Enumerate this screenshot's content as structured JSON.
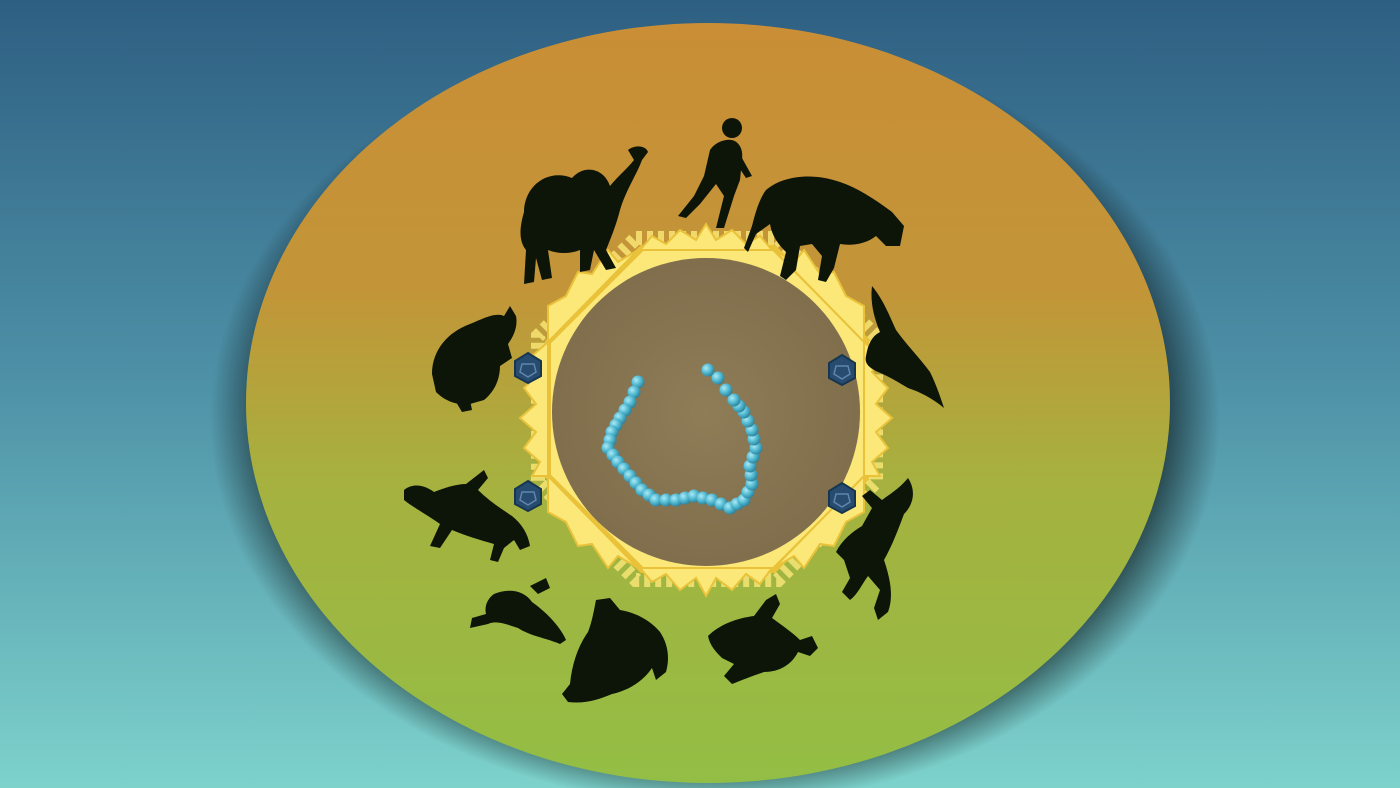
{
  "palette": {
    "background_top": "#2e5f82",
    "background_bottom": "#7dd2cc",
    "disc_top": "#c98e36",
    "disc_bottom": "#93be45",
    "silhouette": "#0d1509",
    "glow": "#fbe878",
    "glow_edge": "#e9c23a",
    "ring": "#6e5c3c",
    "inner_disc": "#8c7a56",
    "bead": "#4fb7cf",
    "virus": "#274c70"
  },
  "scene": {
    "hosts": [
      {
        "icon": "camel-icon"
      },
      {
        "icon": "human-icon"
      },
      {
        "icon": "cow-icon"
      },
      {
        "icon": "bat-icon"
      },
      {
        "icon": "cat-icon"
      },
      {
        "icon": "dog-icon"
      },
      {
        "icon": "pangolin-icon"
      },
      {
        "icon": "bird-icon"
      },
      {
        "icon": "deer-icon"
      },
      {
        "icon": "pig-icon"
      }
    ],
    "virus_particles": 4,
    "molecule": "bead-chain-icon"
  }
}
